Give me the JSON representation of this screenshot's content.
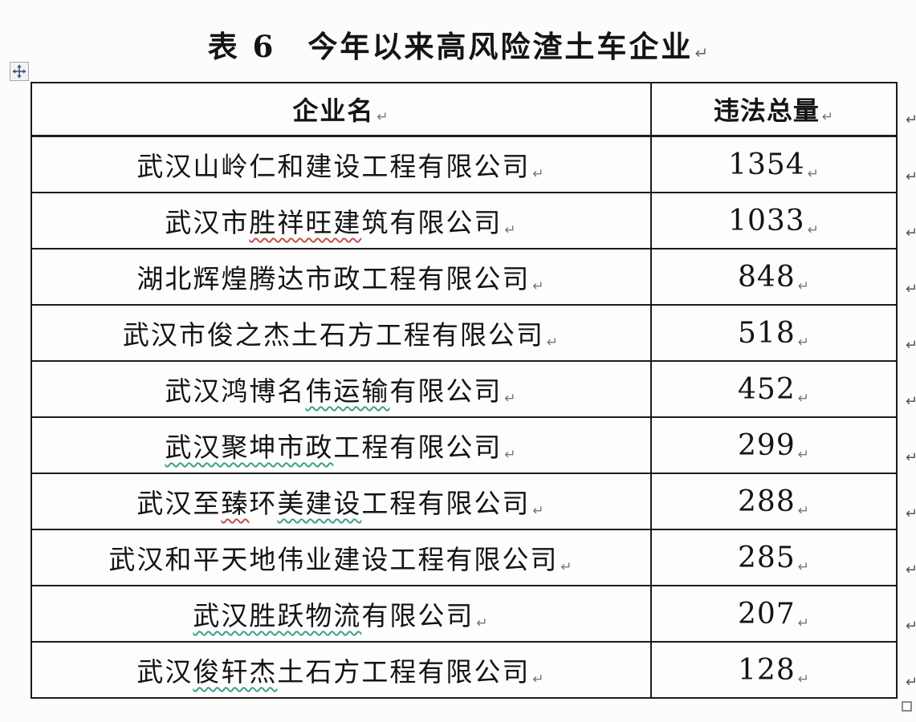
{
  "title": {
    "text": "表 6　今年以来高风险渣土车企业",
    "paragraph_mark": "↵"
  },
  "table": {
    "columns": [
      {
        "label": "企业名"
      },
      {
        "label": "违法总量"
      }
    ],
    "cell_end_mark": "↵",
    "row_end_mark": "↵",
    "rows": [
      {
        "company": "武汉山岭仁和建设工程有限公司",
        "company_parts": [
          {
            "t": "武汉山岭仁和建设工程有限公司",
            "u": ""
          }
        ],
        "violations": "1354"
      },
      {
        "company": "武汉市胜祥旺建筑有限公司",
        "company_parts": [
          {
            "t": "武汉市",
            "u": ""
          },
          {
            "t": "胜祥旺建",
            "u": "red"
          },
          {
            "t": "筑有限公司",
            "u": ""
          }
        ],
        "violations": "1033"
      },
      {
        "company": "湖北辉煌腾达市政工程有限公司",
        "company_parts": [
          {
            "t": "湖北辉煌腾达市政工程有限公司",
            "u": ""
          }
        ],
        "violations": "848"
      },
      {
        "company": "武汉市俊之杰土石方工程有限公司",
        "company_parts": [
          {
            "t": "武汉市俊之杰土石方工程有限公司",
            "u": ""
          }
        ],
        "violations": "518"
      },
      {
        "company": "武汉鸿博名伟运输有限公司",
        "company_parts": [
          {
            "t": "武汉鸿博名",
            "u": ""
          },
          {
            "t": "伟运输",
            "u": "green"
          },
          {
            "t": "有限公司",
            "u": ""
          }
        ],
        "violations": "452"
      },
      {
        "company": "武汉聚坤市政工程有限公司",
        "company_parts": [
          {
            "t": "武汉聚坤市政",
            "u": "green"
          },
          {
            "t": "工程有限公司",
            "u": ""
          }
        ],
        "violations": "299"
      },
      {
        "company": "武汉至臻环美建设工程有限公司",
        "company_parts": [
          {
            "t": "武汉至",
            "u": ""
          },
          {
            "t": "臻",
            "u": "red"
          },
          {
            "t": "环",
            "u": ""
          },
          {
            "t": "美建设",
            "u": "green"
          },
          {
            "t": "工程有限公司",
            "u": ""
          }
        ],
        "violations": "288"
      },
      {
        "company": "武汉和平天地伟业建设工程有限公司",
        "company_parts": [
          {
            "t": "武汉和平天地伟业建设工程有限公司",
            "u": ""
          }
        ],
        "violations": "285"
      },
      {
        "company": "武汉胜跃物流有限公司",
        "company_parts": [
          {
            "t": "武汉胜跃物流",
            "u": "green"
          },
          {
            "t": "有限公司",
            "u": ""
          }
        ],
        "violations": "207"
      },
      {
        "company": "武汉俊轩杰土石方工程有限公司",
        "company_parts": [
          {
            "t": "武汉",
            "u": ""
          },
          {
            "t": "俊轩杰",
            "u": "green"
          },
          {
            "t": "土石方工程有限公司",
            "u": ""
          }
        ],
        "violations": "128"
      }
    ]
  },
  "icons": {
    "move_handle": "table-move-handle",
    "resize_handle": "table-resize-handle"
  },
  "colors": {
    "border": "#1c1c1c",
    "text": "#141414",
    "formatting_mark": "#6b6b6b",
    "spellcheck_red": "#c0504d",
    "grammar_green": "#3e9e8e",
    "handle_arrow": "#3a4a7a",
    "background": "#fcfcfc"
  }
}
